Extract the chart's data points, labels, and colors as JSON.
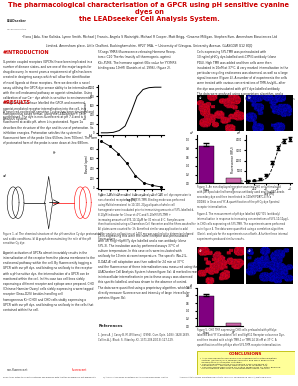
{
  "title_line1": "The pharmacological characterisation of a GPCR using pH sensitive cyanine dyes on",
  "title_line2": "the LEADseeker Cell Analysis System.",
  "title_color": "#cc0000",
  "title_fontsize": 4.8,
  "background_color": "#ffffff",
  "footer_bar_color": "#8b0000",
  "logo_text": "LEADseeker",
  "authors": "¹Fiona J Adu, Sian Kalinka, Lynne Smith, Michael J Francis, Angela S Wainright, Michael R Cooper, Matt Brigg, ²Graeme Milligan, Stephen Kum, Amersham Biosciences Ltd",
  "affiliation": "Limited, Amersham place, Little Chalfont, Buckinghamshire, HP27 9NA, ¹² University of Glasgow, University Avenue, GLASGOW G12 8QQ",
  "section_intro_title": "#INTRODUCTION",
  "section_results_title": "#RESULTS",
  "section_intro_color": "#cc0000",
  "section_results_color": "#cc0000",
  "conclusions_title": "CONCLUSIONS",
  "conclusions_color": "#cc0000",
  "conclusions_bg": "#ffff99",
  "fig_purple": "#800080",
  "fig_pink": "#cc66aa",
  "fig_dark": "#333333",
  "bar1_vals": [
    0.85,
    0.12
  ],
  "bar2_vals": [
    0.78,
    0.08
  ],
  "curve1_x": [
    0,
    1,
    2,
    3,
    4,
    5,
    6,
    7,
    8,
    9,
    10
  ],
  "curve1_y": [
    0.0,
    0.0,
    0.01,
    0.05,
    0.15,
    0.45,
    0.8,
    0.95,
    0.99,
    1.0,
    1.0
  ],
  "curve2_x": [
    -9,
    -8,
    -7,
    -6,
    -5,
    -4,
    -3,
    -2
  ],
  "curve2_y": [
    0.95,
    0.85,
    0.7,
    0.5,
    0.25,
    0.1,
    0.05,
    0.02
  ],
  "dose_x": [
    -11,
    -10,
    -9,
    -8,
    -7,
    -6,
    -5,
    -4
  ],
  "dose_y": [
    50,
    100,
    200,
    600,
    1800,
    3200,
    3900,
    4100
  ],
  "dose_yerr": [
    30,
    40,
    60,
    100,
    150,
    200,
    180,
    160
  ]
}
